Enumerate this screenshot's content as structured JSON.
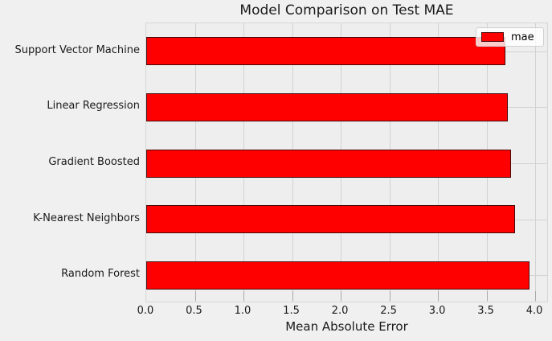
{
  "chart_data": {
    "type": "bar",
    "orientation": "horizontal",
    "title": "Model Comparison on Test MAE",
    "xlabel": "Mean Absolute Error",
    "ylabel": "",
    "categories": [
      "Support Vector Machine",
      "Linear Regression",
      "Gradient Boosted",
      "K-Nearest Neighbors",
      "Random Forest"
    ],
    "series": [
      {
        "name": "mae",
        "values": [
          3.69,
          3.72,
          3.75,
          3.79,
          3.94
        ]
      }
    ],
    "x_ticks": [
      "0.0",
      "0.5",
      "1.0",
      "1.5",
      "2.0",
      "2.5",
      "3.0",
      "3.5",
      "4.0"
    ],
    "xlim": [
      0,
      4.14
    ],
    "grid": true,
    "legend": {
      "position": "upper-right",
      "entries": [
        "mae"
      ]
    },
    "colors": {
      "bar_fill": "#ff0000",
      "bar_edge": "#490909",
      "figure_background": "#f0f0f0",
      "plot_background": "#eeeeee",
      "gridline": "#d2d2d2",
      "text": "#1a1a1a"
    }
  }
}
